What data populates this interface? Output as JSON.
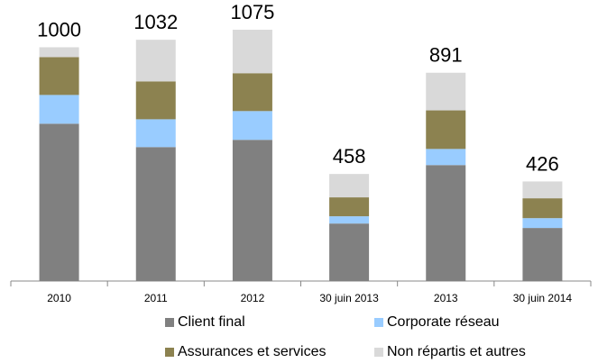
{
  "chart_data": {
    "type": "stacked_bar",
    "categories": [
      "2010",
      "2011",
      "2012",
      "30 juin 2013",
      "2013",
      "30 juin 2014"
    ],
    "series": [
      {
        "name": "Client final",
        "color": "#808080",
        "values": [
          673,
          573,
          604,
          246,
          496,
          227
        ]
      },
      {
        "name": "Corporate réseau",
        "color": "#99ccff",
        "values": [
          123,
          119,
          123,
          31,
          69,
          42
        ]
      },
      {
        "name": "Assurances et services",
        "color": "#8c8250",
        "values": [
          162,
          162,
          162,
          81,
          165,
          85
        ]
      },
      {
        "name": "Non répartis et autres",
        "color": "#d9d9d9",
        "values": [
          42,
          178,
          186,
          100,
          161,
          72
        ]
      }
    ],
    "totals": [
      1000,
      1032,
      1075,
      458,
      891,
      426
    ]
  }
}
